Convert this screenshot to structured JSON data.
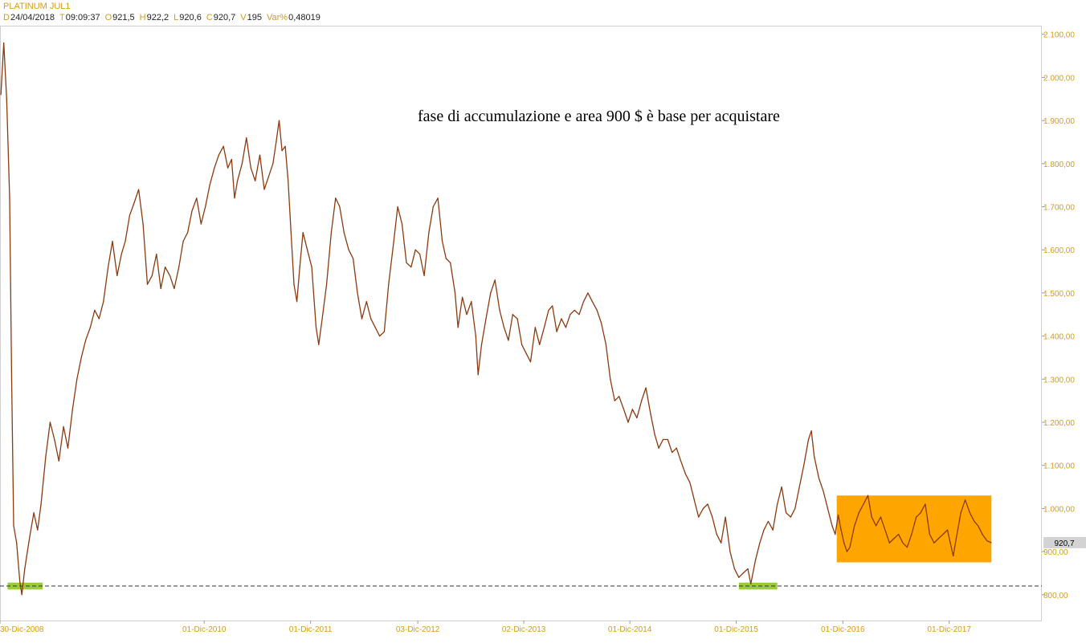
{
  "header": {
    "instrument": "PLATINUM JUL1",
    "fields": [
      {
        "key": "D",
        "value": "24/04/2018"
      },
      {
        "key": "T",
        "value": "09:09:37"
      },
      {
        "key": "O",
        "value": "921,5"
      },
      {
        "key": "H",
        "value": "922,2"
      },
      {
        "key": "L",
        "value": "920,6"
      },
      {
        "key": "C",
        "value": "920,7"
      },
      {
        "key": "V",
        "value": "195"
      },
      {
        "key": "Var%",
        "value": "0,48019"
      }
    ]
  },
  "chart_data": {
    "type": "line",
    "title": "",
    "annotation": "fase di accumulazione e area 900 $ è base per acquistare",
    "y_axis": {
      "position": "right",
      "ylim": [
        740,
        2120
      ],
      "ticks": [
        800,
        900,
        1000,
        1100,
        1200,
        1300,
        1400,
        1500,
        1600,
        1700,
        1800,
        1900,
        2000,
        2100
      ],
      "tick_labels": [
        "800,00",
        "900,00",
        "1.000,00",
        "1.100,00",
        "1.200,00",
        "1.300,00",
        "1.400,00",
        "1.500,00",
        "1.600,00",
        "1.700,00",
        "1.800,00",
        "1.900,00",
        "2.000,00",
        "2.100,00"
      ]
    },
    "x_axis": {
      "xlim": [
        "2008-12-30",
        "2018-10-15"
      ],
      "ticks": [
        "2008-12-30",
        "2010-12-01",
        "2011-12-01",
        "2012-12-03",
        "2013-12-02",
        "2014-12-01",
        "2015-12-01",
        "2016-12-01",
        "2017-12-01"
      ],
      "tick_labels": [
        "30-Dic-2008",
        "01-Dic-2010",
        "01-Dic-2011",
        "03-Dic-2012",
        "02-Dic-2013",
        "01-Dic-2014",
        "01-Dic-2015",
        "01-Dic-2016",
        "01-Dic-2017"
      ]
    },
    "last_price_label": "920,7",
    "support_level": 820,
    "highlight_zones": [
      {
        "name": "support-marker-left",
        "x": [
          "2009-01-25",
          "2009-05-25"
        ],
        "y": [
          812,
          828
        ],
        "color": "#9acd32"
      },
      {
        "name": "support-marker-right",
        "x": [
          "2015-12-10",
          "2016-04-20"
        ],
        "y": [
          812,
          828
        ],
        "color": "#9acd32"
      },
      {
        "name": "accumulation-zone",
        "x": [
          "2016-11-10",
          "2018-04-25"
        ],
        "y": [
          875,
          1030
        ],
        "color": "#ffa500"
      }
    ],
    "series": [
      {
        "color": "#8b3a0f",
        "points": [
          [
            "2009-01-02",
            1960
          ],
          [
            "2009-01-12",
            2080
          ],
          [
            "2009-01-22",
            1950
          ],
          [
            "2009-02-01",
            1720
          ],
          [
            "2009-02-08",
            1300
          ],
          [
            "2009-02-15",
            960
          ],
          [
            "2009-02-25",
            920
          ],
          [
            "2009-03-08",
            830
          ],
          [
            "2009-03-15",
            800
          ],
          [
            "2009-03-25",
            860
          ],
          [
            "2009-04-10",
            930
          ],
          [
            "2009-04-25",
            990
          ],
          [
            "2009-05-08",
            950
          ],
          [
            "2009-05-20",
            1010
          ],
          [
            "2009-06-05",
            1120
          ],
          [
            "2009-06-20",
            1200
          ],
          [
            "2009-07-05",
            1160
          ],
          [
            "2009-07-20",
            1110
          ],
          [
            "2009-08-05",
            1190
          ],
          [
            "2009-08-20",
            1140
          ],
          [
            "2009-09-05",
            1230
          ],
          [
            "2009-09-20",
            1300
          ],
          [
            "2009-10-05",
            1350
          ],
          [
            "2009-10-20",
            1390
          ],
          [
            "2009-11-05",
            1420
          ],
          [
            "2009-11-20",
            1460
          ],
          [
            "2009-12-05",
            1440
          ],
          [
            "2009-12-20",
            1480
          ],
          [
            "2010-01-05",
            1560
          ],
          [
            "2010-01-20",
            1620
          ],
          [
            "2010-02-05",
            1540
          ],
          [
            "2010-02-20",
            1590
          ],
          [
            "2010-03-05",
            1620
          ],
          [
            "2010-03-20",
            1680
          ],
          [
            "2010-04-05",
            1710
          ],
          [
            "2010-04-20",
            1740
          ],
          [
            "2010-05-05",
            1660
          ],
          [
            "2010-05-20",
            1520
          ],
          [
            "2010-06-05",
            1540
          ],
          [
            "2010-06-20",
            1590
          ],
          [
            "2010-07-05",
            1510
          ],
          [
            "2010-07-20",
            1560
          ],
          [
            "2010-08-05",
            1540
          ],
          [
            "2010-08-20",
            1510
          ],
          [
            "2010-09-05",
            1560
          ],
          [
            "2010-09-20",
            1620
          ],
          [
            "2010-10-05",
            1640
          ],
          [
            "2010-10-20",
            1690
          ],
          [
            "2010-11-05",
            1720
          ],
          [
            "2010-11-20",
            1660
          ],
          [
            "2010-12-05",
            1700
          ],
          [
            "2010-12-20",
            1750
          ],
          [
            "2011-01-05",
            1790
          ],
          [
            "2011-01-20",
            1820
          ],
          [
            "2011-02-05",
            1840
          ],
          [
            "2011-02-20",
            1790
          ],
          [
            "2011-03-05",
            1810
          ],
          [
            "2011-03-15",
            1720
          ],
          [
            "2011-03-25",
            1760
          ],
          [
            "2011-04-10",
            1800
          ],
          [
            "2011-04-25",
            1860
          ],
          [
            "2011-05-10",
            1790
          ],
          [
            "2011-05-25",
            1760
          ],
          [
            "2011-06-10",
            1820
          ],
          [
            "2011-06-25",
            1740
          ],
          [
            "2011-07-10",
            1770
          ],
          [
            "2011-07-25",
            1800
          ],
          [
            "2011-08-05",
            1850
          ],
          [
            "2011-08-15",
            1900
          ],
          [
            "2011-08-25",
            1830
          ],
          [
            "2011-09-05",
            1840
          ],
          [
            "2011-09-15",
            1760
          ],
          [
            "2011-09-25",
            1640
          ],
          [
            "2011-10-05",
            1520
          ],
          [
            "2011-10-15",
            1480
          ],
          [
            "2011-10-25",
            1560
          ],
          [
            "2011-11-05",
            1640
          ],
          [
            "2011-11-20",
            1600
          ],
          [
            "2011-12-05",
            1560
          ],
          [
            "2011-12-20",
            1420
          ],
          [
            "2011-12-29",
            1380
          ],
          [
            "2012-01-10",
            1440
          ],
          [
            "2012-01-25",
            1520
          ],
          [
            "2012-02-10",
            1640
          ],
          [
            "2012-02-25",
            1720
          ],
          [
            "2012-03-10",
            1700
          ],
          [
            "2012-03-25",
            1640
          ],
          [
            "2012-04-10",
            1600
          ],
          [
            "2012-04-25",
            1580
          ],
          [
            "2012-05-10",
            1500
          ],
          [
            "2012-05-25",
            1440
          ],
          [
            "2012-06-10",
            1480
          ],
          [
            "2012-06-25",
            1440
          ],
          [
            "2012-07-10",
            1420
          ],
          [
            "2012-07-25",
            1400
          ],
          [
            "2012-08-10",
            1410
          ],
          [
            "2012-08-25",
            1520
          ],
          [
            "2012-09-10",
            1610
          ],
          [
            "2012-09-25",
            1700
          ],
          [
            "2012-10-10",
            1660
          ],
          [
            "2012-10-25",
            1570
          ],
          [
            "2012-11-10",
            1560
          ],
          [
            "2012-11-25",
            1600
          ],
          [
            "2012-12-10",
            1590
          ],
          [
            "2012-12-25",
            1540
          ],
          [
            "2013-01-10",
            1640
          ],
          [
            "2013-01-25",
            1700
          ],
          [
            "2013-02-10",
            1720
          ],
          [
            "2013-02-25",
            1620
          ],
          [
            "2013-03-10",
            1580
          ],
          [
            "2013-03-25",
            1570
          ],
          [
            "2013-04-10",
            1500
          ],
          [
            "2013-04-20",
            1420
          ],
          [
            "2013-05-05",
            1490
          ],
          [
            "2013-05-20",
            1450
          ],
          [
            "2013-06-05",
            1480
          ],
          [
            "2013-06-20",
            1400
          ],
          [
            "2013-06-28",
            1310
          ],
          [
            "2013-07-10",
            1380
          ],
          [
            "2013-07-25",
            1440
          ],
          [
            "2013-08-10",
            1500
          ],
          [
            "2013-08-25",
            1530
          ],
          [
            "2013-09-10",
            1460
          ],
          [
            "2013-09-25",
            1420
          ],
          [
            "2013-10-10",
            1390
          ],
          [
            "2013-10-25",
            1450
          ],
          [
            "2013-11-10",
            1440
          ],
          [
            "2013-11-25",
            1380
          ],
          [
            "2013-12-10",
            1360
          ],
          [
            "2013-12-25",
            1340
          ],
          [
            "2014-01-10",
            1420
          ],
          [
            "2014-01-25",
            1380
          ],
          [
            "2014-02-10",
            1420
          ],
          [
            "2014-02-25",
            1460
          ],
          [
            "2014-03-10",
            1470
          ],
          [
            "2014-03-25",
            1410
          ],
          [
            "2014-04-10",
            1440
          ],
          [
            "2014-04-25",
            1420
          ],
          [
            "2014-05-10",
            1450
          ],
          [
            "2014-05-25",
            1460
          ],
          [
            "2014-06-10",
            1450
          ],
          [
            "2014-06-25",
            1480
          ],
          [
            "2014-07-10",
            1500
          ],
          [
            "2014-07-25",
            1480
          ],
          [
            "2014-08-10",
            1460
          ],
          [
            "2014-08-25",
            1430
          ],
          [
            "2014-09-10",
            1380
          ],
          [
            "2014-09-25",
            1300
          ],
          [
            "2014-10-10",
            1250
          ],
          [
            "2014-10-25",
            1260
          ],
          [
            "2014-11-10",
            1230
          ],
          [
            "2014-11-25",
            1200
          ],
          [
            "2014-12-10",
            1230
          ],
          [
            "2014-12-25",
            1210
          ],
          [
            "2015-01-10",
            1250
          ],
          [
            "2015-01-25",
            1280
          ],
          [
            "2015-02-10",
            1220
          ],
          [
            "2015-02-25",
            1170
          ],
          [
            "2015-03-10",
            1140
          ],
          [
            "2015-03-25",
            1160
          ],
          [
            "2015-04-10",
            1160
          ],
          [
            "2015-04-25",
            1130
          ],
          [
            "2015-05-10",
            1140
          ],
          [
            "2015-05-25",
            1110
          ],
          [
            "2015-06-10",
            1080
          ],
          [
            "2015-06-25",
            1060
          ],
          [
            "2015-07-10",
            1020
          ],
          [
            "2015-07-25",
            980
          ],
          [
            "2015-08-10",
            1000
          ],
          [
            "2015-08-25",
            1010
          ],
          [
            "2015-09-10",
            980
          ],
          [
            "2015-09-25",
            940
          ],
          [
            "2015-10-10",
            920
          ],
          [
            "2015-10-25",
            980
          ],
          [
            "2015-11-10",
            900
          ],
          [
            "2015-11-25",
            860
          ],
          [
            "2015-12-10",
            840
          ],
          [
            "2015-12-25",
            850
          ],
          [
            "2016-01-10",
            860
          ],
          [
            "2016-01-20",
            825
          ],
          [
            "2016-02-05",
            880
          ],
          [
            "2016-02-20",
            920
          ],
          [
            "2016-03-05",
            950
          ],
          [
            "2016-03-20",
            970
          ],
          [
            "2016-04-05",
            950
          ],
          [
            "2016-04-20",
            1010
          ],
          [
            "2016-05-05",
            1050
          ],
          [
            "2016-05-20",
            990
          ],
          [
            "2016-06-05",
            980
          ],
          [
            "2016-06-20",
            1000
          ],
          [
            "2016-07-05",
            1050
          ],
          [
            "2016-07-20",
            1100
          ],
          [
            "2016-08-05",
            1160
          ],
          [
            "2016-08-15",
            1180
          ],
          [
            "2016-08-25",
            1120
          ],
          [
            "2016-09-10",
            1070
          ],
          [
            "2016-09-25",
            1040
          ],
          [
            "2016-10-10",
            1000
          ],
          [
            "2016-10-25",
            960
          ],
          [
            "2016-11-05",
            940
          ],
          [
            "2016-11-15",
            985
          ],
          [
            "2016-11-25",
            950
          ],
          [
            "2016-12-05",
            920
          ],
          [
            "2016-12-15",
            900
          ],
          [
            "2016-12-25",
            910
          ],
          [
            "2017-01-10",
            960
          ],
          [
            "2017-01-25",
            990
          ],
          [
            "2017-02-10",
            1010
          ],
          [
            "2017-02-25",
            1030
          ],
          [
            "2017-03-10",
            980
          ],
          [
            "2017-03-25",
            960
          ],
          [
            "2017-04-10",
            980
          ],
          [
            "2017-04-25",
            950
          ],
          [
            "2017-05-10",
            920
          ],
          [
            "2017-05-25",
            930
          ],
          [
            "2017-06-10",
            940
          ],
          [
            "2017-06-25",
            920
          ],
          [
            "2017-07-10",
            910
          ],
          [
            "2017-07-25",
            940
          ],
          [
            "2017-08-10",
            980
          ],
          [
            "2017-08-25",
            990
          ],
          [
            "2017-09-10",
            1010
          ],
          [
            "2017-09-25",
            940
          ],
          [
            "2017-10-10",
            920
          ],
          [
            "2017-10-25",
            930
          ],
          [
            "2017-11-10",
            940
          ],
          [
            "2017-11-25",
            950
          ],
          [
            "2017-12-05",
            920
          ],
          [
            "2017-12-15",
            890
          ],
          [
            "2017-12-25",
            930
          ],
          [
            "2018-01-10",
            990
          ],
          [
            "2018-01-25",
            1020
          ],
          [
            "2018-02-10",
            990
          ],
          [
            "2018-02-25",
            970
          ],
          [
            "2018-03-10",
            960
          ],
          [
            "2018-03-25",
            940
          ],
          [
            "2018-04-10",
            925
          ],
          [
            "2018-04-24",
            920.7
          ]
        ]
      }
    ]
  }
}
